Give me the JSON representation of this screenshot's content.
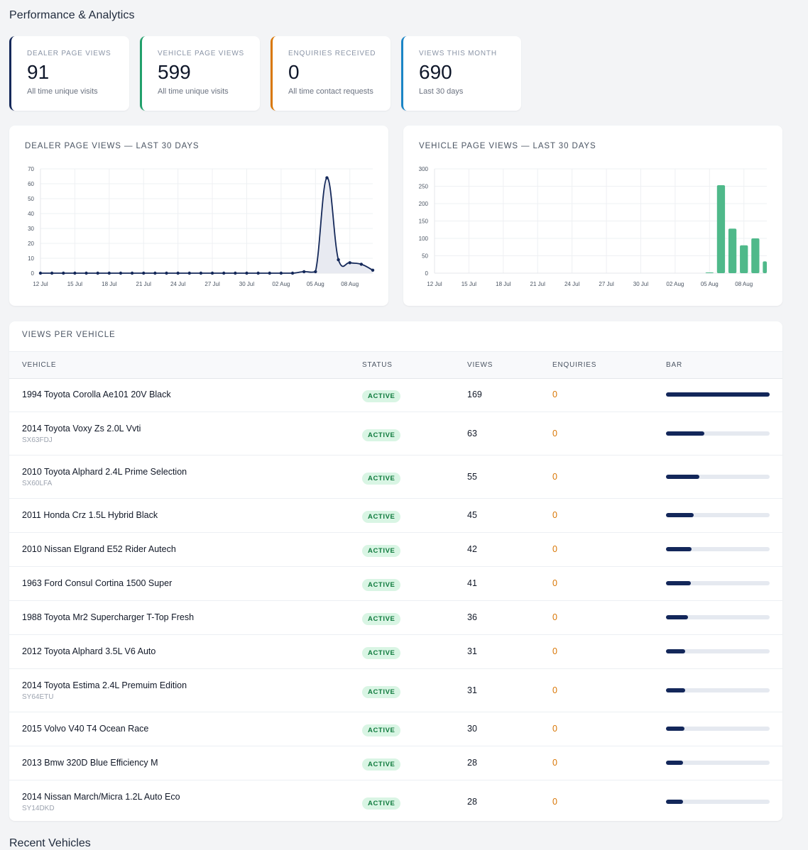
{
  "page": {
    "title": "Performance & Analytics",
    "next_section_title": "Recent Vehicles"
  },
  "stats": [
    {
      "label": "DEALER PAGE VIEWS",
      "value": "91",
      "sub": "All time unique visits",
      "accent": "#15295a"
    },
    {
      "label": "VEHICLE PAGE VIEWS",
      "value": "599",
      "sub": "All time unique visits",
      "accent": "#22a06b"
    },
    {
      "label": "ENQUIRIES RECEIVED",
      "value": "0",
      "sub": "All time contact requests",
      "accent": "#d97706"
    },
    {
      "label": "VIEWS THIS MONTH",
      "value": "690",
      "sub": "Last 30 days",
      "accent": "#1b85c6"
    }
  ],
  "colors": {
    "navy": "#15295a",
    "green_bar": "#4fb98a",
    "badge_bg": "#d9f5e4",
    "badge_text": "#0f7a3d",
    "enquiry_orange": "#d97706",
    "area_fill": "#e6e8f0"
  },
  "chart_data": [
    {
      "type": "area",
      "title": "DEALER PAGE VIEWS — LAST 30 DAYS",
      "x": [
        "12 Jul",
        "13 Jul",
        "14 Jul",
        "15 Jul",
        "16 Jul",
        "17 Jul",
        "18 Jul",
        "19 Jul",
        "20 Jul",
        "21 Jul",
        "22 Jul",
        "23 Jul",
        "24 Jul",
        "25 Jul",
        "26 Jul",
        "27 Jul",
        "28 Jul",
        "29 Jul",
        "30 Jul",
        "31 Jul",
        "01 Aug",
        "02 Aug",
        "03 Aug",
        "04 Aug",
        "05 Aug",
        "06 Aug",
        "07 Aug",
        "08 Aug",
        "09 Aug",
        "10 Aug"
      ],
      "xticks": [
        "12 Jul",
        "15 Jul",
        "18 Jul",
        "21 Jul",
        "24 Jul",
        "27 Jul",
        "30 Jul",
        "02 Aug",
        "05 Aug",
        "08 Aug"
      ],
      "values": [
        0,
        0,
        0,
        0,
        0,
        0,
        0,
        0,
        0,
        0,
        0,
        0,
        0,
        0,
        0,
        0,
        0,
        0,
        0,
        0,
        0,
        0,
        0,
        1,
        1,
        64,
        9,
        7,
        6,
        2
      ],
      "ylim": [
        0,
        70
      ],
      "yticks": [
        0,
        10,
        20,
        30,
        40,
        50,
        60,
        70
      ],
      "grid": true
    },
    {
      "type": "bar",
      "title": "VEHICLE PAGE VIEWS — LAST 30 DAYS",
      "x": [
        "12 Jul",
        "13 Jul",
        "14 Jul",
        "15 Jul",
        "16 Jul",
        "17 Jul",
        "18 Jul",
        "19 Jul",
        "20 Jul",
        "21 Jul",
        "22 Jul",
        "23 Jul",
        "24 Jul",
        "25 Jul",
        "26 Jul",
        "27 Jul",
        "28 Jul",
        "29 Jul",
        "30 Jul",
        "31 Jul",
        "01 Aug",
        "02 Aug",
        "03 Aug",
        "04 Aug",
        "05 Aug",
        "06 Aug",
        "07 Aug",
        "08 Aug",
        "09 Aug",
        "10 Aug"
      ],
      "xticks": [
        "12 Jul",
        "15 Jul",
        "18 Jul",
        "21 Jul",
        "24 Jul",
        "27 Jul",
        "30 Jul",
        "02 Aug",
        "05 Aug",
        "08 Aug"
      ],
      "values": [
        0,
        0,
        0,
        0,
        0,
        0,
        0,
        0,
        0,
        0,
        0,
        0,
        0,
        0,
        0,
        0,
        0,
        0,
        0,
        0,
        0,
        0,
        0,
        0,
        2,
        253,
        128,
        80,
        100,
        34
      ],
      "ylim": [
        0,
        300
      ],
      "yticks": [
        0,
        50,
        100,
        150,
        200,
        250,
        300
      ],
      "grid": true
    }
  ],
  "table": {
    "title": "VIEWS PER VEHICLE",
    "headers": {
      "vehicle": "VEHICLE",
      "status": "STATUS",
      "views": "VIEWS",
      "enquiries": "ENQUIRIES",
      "bar": "BAR"
    },
    "max_views": 169,
    "rows": [
      {
        "name": "1994 Toyota Corolla Ae101 20V Black",
        "reg": "",
        "status": "ACTIVE",
        "views": "169",
        "enquiries": "0",
        "bar_fraction": 1.0
      },
      {
        "name": "2014 Toyota Voxy Zs 2.0L Vvti",
        "reg": "SX63FDJ",
        "status": "ACTIVE",
        "views": "63",
        "enquiries": "0",
        "bar_fraction": 0.373
      },
      {
        "name": "2010 Toyota Alphard 2.4L Prime Selection",
        "reg": "SX60LFA",
        "status": "ACTIVE",
        "views": "55",
        "enquiries": "0",
        "bar_fraction": 0.325
      },
      {
        "name": "2011 Honda Crz 1.5L Hybrid Black",
        "reg": "",
        "status": "ACTIVE",
        "views": "45",
        "enquiries": "0",
        "bar_fraction": 0.266
      },
      {
        "name": "2010 Nissan Elgrand E52 Rider Autech",
        "reg": "",
        "status": "ACTIVE",
        "views": "42",
        "enquiries": "0",
        "bar_fraction": 0.249
      },
      {
        "name": "1963 Ford Consul Cortina 1500 Super",
        "reg": "",
        "status": "ACTIVE",
        "views": "41",
        "enquiries": "0",
        "bar_fraction": 0.243
      },
      {
        "name": "1988 Toyota Mr2 Supercharger T-Top Fresh",
        "reg": "",
        "status": "ACTIVE",
        "views": "36",
        "enquiries": "0",
        "bar_fraction": 0.213
      },
      {
        "name": "2012 Toyota Alphard 3.5L V6 Auto",
        "reg": "",
        "status": "ACTIVE",
        "views": "31",
        "enquiries": "0",
        "bar_fraction": 0.183
      },
      {
        "name": "2014 Toyota Estima 2.4L Premuim Edition",
        "reg": "SY64ETU",
        "status": "ACTIVE",
        "views": "31",
        "enquiries": "0",
        "bar_fraction": 0.183
      },
      {
        "name": "2015 Volvo V40 T4 Ocean Race",
        "reg": "",
        "status": "ACTIVE",
        "views": "30",
        "enquiries": "0",
        "bar_fraction": 0.178
      },
      {
        "name": "2013 Bmw 320D Blue Efficiency M",
        "reg": "",
        "status": "ACTIVE",
        "views": "28",
        "enquiries": "0",
        "bar_fraction": 0.166
      },
      {
        "name": "2014 Nissan March/Micra 1.2L Auto Eco",
        "reg": "SY14DKD",
        "status": "ACTIVE",
        "views": "28",
        "enquiries": "0",
        "bar_fraction": 0.166
      }
    ]
  }
}
